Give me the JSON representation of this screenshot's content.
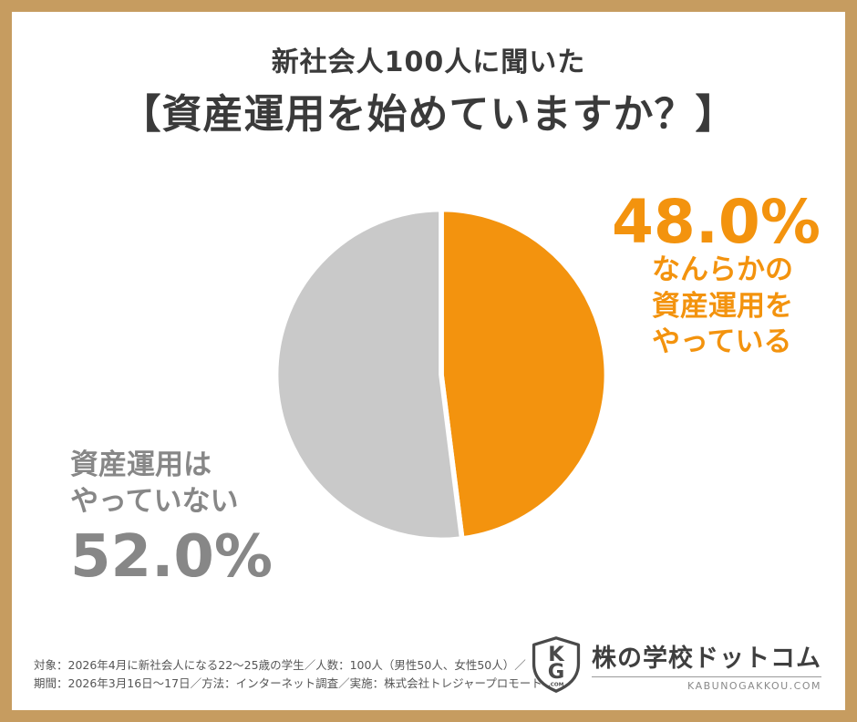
{
  "page": {
    "title_line1": "新社会人100人に聞いた",
    "title_line2": "【資産運用を始めていますか？】"
  },
  "chart_data": {
    "type": "pie",
    "title": "新社会人100人に聞いた【資産運用を始めていますか？】",
    "start_angle_deg": -90,
    "direction": "clockwise",
    "total": 100,
    "segments": [
      {
        "label": "なんらかの資産運用をやっている",
        "value": 48.0,
        "color": "#F3930E"
      },
      {
        "label": "資産運用はやっていない",
        "value": 52.0,
        "color": "#C9C9C9"
      }
    ],
    "legend_position": "callout-labels",
    "slice_gap_color": "#ffffff"
  },
  "callouts": {
    "right": {
      "percent": "48.0%",
      "lines": {
        "0": "なんらかの",
        "1": "資産運用を",
        "2": "やっている"
      }
    },
    "left": {
      "percent": "52.0%",
      "lines": {
        "0": "資産運用は",
        "1": "やっていない"
      }
    }
  },
  "footer": {
    "line1": "対象：2026年4月に新社会人になる22〜25歳の学生／人数：100人（男性50人、女性50人）／",
    "line2": "期間：2026年3月16日〜17日／方法：インターネット調査／実施：株式会社トレジャープロモート"
  },
  "logo": {
    "shield_top": "K",
    "shield_bottom": "G",
    "shield_sub": ".COM",
    "name": "株の学校ドットコム",
    "domain": "KABUNOGAKKOU.COM"
  },
  "colors": {
    "border": "#C69C60",
    "orange": "#F3930E",
    "pie_gray": "#C9C9C9",
    "text_gray": "#878787",
    "title": "#3A3A3A"
  }
}
